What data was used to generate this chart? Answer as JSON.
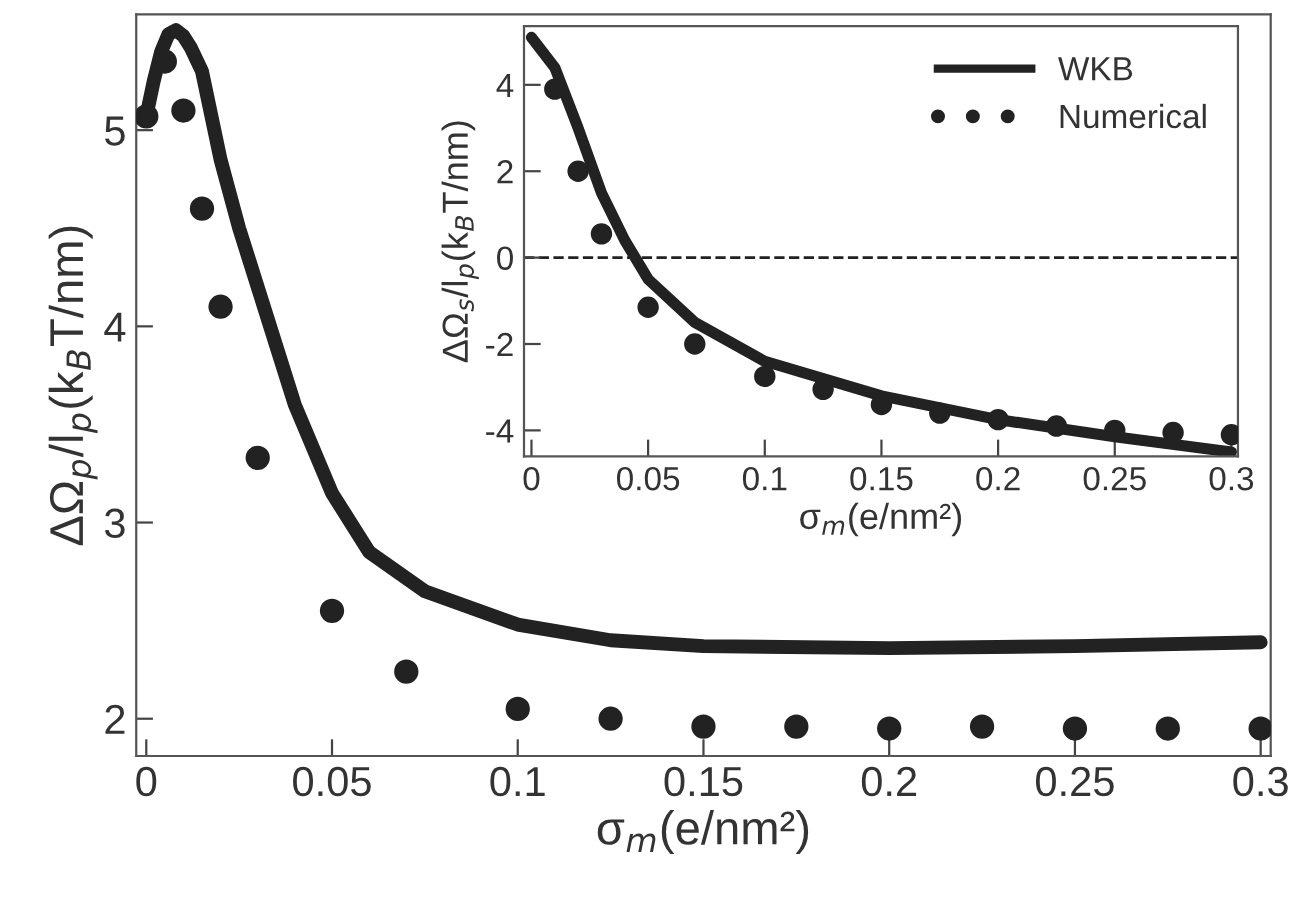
{
  "chart_data": [
    {
      "type": "line",
      "xlabel": "σ$_{m}$(e/nm²)",
      "ylabel": "ΔΩ$_{p}$/l$_{p}$(k$_{B}$T/nm)",
      "xlim": [
        -0.0027,
        0.3027
      ],
      "ylim": [
        1.81,
        5.59
      ],
      "xticks": [
        0,
        0.05,
        0.1,
        0.15,
        0.2,
        0.25,
        0.3
      ],
      "yticks": [
        2,
        3,
        4,
        5
      ],
      "grid": false,
      "legend": false,
      "series": [
        {
          "color": "#222222",
          "x": [
            0,
            0.002,
            0.004,
            0.006,
            0.008,
            0.01,
            0.012,
            0.015,
            0.02,
            0.025,
            0.03,
            0.04,
            0.05,
            0.06,
            0.075,
            0.1,
            0.125,
            0.15,
            0.2,
            0.25,
            0.3
          ],
          "values": [
            5.07,
            5.25,
            5.4,
            5.49,
            5.51,
            5.48,
            5.42,
            5.3,
            4.85,
            4.5,
            4.2,
            3.6,
            3.15,
            2.85,
            2.65,
            2.48,
            2.4,
            2.37,
            2.36,
            2.37,
            2.39
          ]
        },
        {
          "type": "scatter",
          "color": "#222222",
          "marker": "circle",
          "x": [
            0,
            0.005,
            0.01,
            0.015,
            0.02,
            0.03,
            0.05,
            0.07,
            0.1,
            0.125,
            0.15,
            0.175,
            0.2,
            0.225,
            0.25,
            0.275,
            0.3
          ],
          "values": [
            5.07,
            5.35,
            5.1,
            4.6,
            4.1,
            3.33,
            2.55,
            2.24,
            2.05,
            2.0,
            1.96,
            1.96,
            1.95,
            1.96,
            1.95,
            1.95,
            1.95
          ]
        }
      ]
    },
    {
      "type": "line",
      "xlabel": "σ$_{m}$(e/nm²)",
      "ylabel": "ΔΩ$_{s}$/l$_{p}$(k$_{B}$T/nm)",
      "xlim": [
        -0.0032,
        0.3028
      ],
      "ylim": [
        -4.6,
        5.36
      ],
      "xticks": [
        0,
        0.05,
        0.1,
        0.15,
        0.2,
        0.25,
        0.3
      ],
      "yticks": [
        -4,
        -2,
        0,
        2,
        4
      ],
      "grid": false,
      "legend": "top right",
      "ref_lines": [
        {
          "axis": "y",
          "value": 0,
          "line_style": "dashed",
          "color": "#222222"
        }
      ],
      "series": [
        {
          "name": "WKB",
          "color": "#222222",
          "x": [
            0,
            0.01,
            0.02,
            0.03,
            0.04,
            0.05,
            0.07,
            0.1,
            0.15,
            0.2,
            0.25,
            0.3
          ],
          "values": [
            5.1,
            4.4,
            3.0,
            1.5,
            0.4,
            -0.5,
            -1.5,
            -2.4,
            -3.2,
            -3.75,
            -4.15,
            -4.5
          ]
        },
        {
          "type": "scatter",
          "name": "Numerical",
          "color": "#222222",
          "marker": "circle",
          "x": [
            0.01,
            0.02,
            0.03,
            0.05,
            0.07,
            0.1,
            0.125,
            0.15,
            0.175,
            0.2,
            0.225,
            0.25,
            0.275,
            0.3
          ],
          "values": [
            3.9,
            2.0,
            0.55,
            -1.15,
            -2.0,
            -2.75,
            -3.05,
            -3.4,
            -3.6,
            -3.75,
            -3.9,
            -4.0,
            -4.05,
            -4.1
          ]
        }
      ]
    }
  ]
}
